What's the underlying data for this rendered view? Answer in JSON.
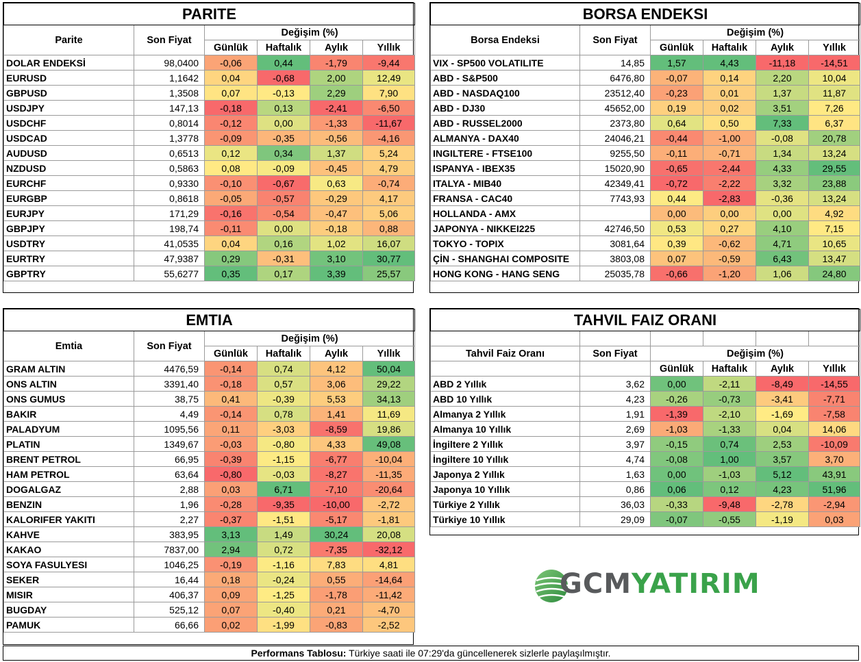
{
  "headers": {
    "son_fiyat": "Son Fiyat",
    "degisim": "Değişim (%)",
    "gunluk": "Günlük",
    "haftalik": "Haftalık",
    "aylik": "Aylık",
    "yillik": "Yıllık"
  },
  "parite": {
    "title": "PARITE",
    "col_name": "Parite",
    "rows": [
      {
        "name": "DOLAR ENDEKSİ",
        "price": "98,0400",
        "d": "-0,06",
        "w": "0,44",
        "m": "-1,79",
        "y": "-9,44"
      },
      {
        "name": "EURUSD",
        "price": "1,1642",
        "d": "0,04",
        "w": "-0,68",
        "m": "2,00",
        "y": "12,49"
      },
      {
        "name": "GBPUSD",
        "price": "1,3508",
        "d": "0,07",
        "w": "-0,13",
        "m": "2,29",
        "y": "7,90"
      },
      {
        "name": "USDJPY",
        "price": "147,13",
        "d": "-0,18",
        "w": "0,13",
        "m": "-2,41",
        "y": "-6,50"
      },
      {
        "name": "USDCHF",
        "price": "0,8014",
        "d": "-0,12",
        "w": "0,00",
        "m": "-1,33",
        "y": "-11,67"
      },
      {
        "name": "USDCAD",
        "price": "1,3778",
        "d": "-0,09",
        "w": "-0,35",
        "m": "-0,56",
        "y": "-4,16"
      },
      {
        "name": "AUDUSD",
        "price": "0,6513",
        "d": "0,12",
        "w": "0,34",
        "m": "1,37",
        "y": "5,24"
      },
      {
        "name": "NZDUSD",
        "price": "0,5863",
        "d": "0,08",
        "w": "-0,09",
        "m": "-0,45",
        "y": "4,79"
      },
      {
        "name": "EURCHF",
        "price": "0,9330",
        "d": "-0,10",
        "w": "-0,67",
        "m": "0,63",
        "y": "-0,74"
      },
      {
        "name": "EURGBP",
        "price": "0,8618",
        "d": "-0,05",
        "w": "-0,57",
        "m": "-0,29",
        "y": "4,17"
      },
      {
        "name": "EURJPY",
        "price": "171,29",
        "d": "-0,16",
        "w": "-0,54",
        "m": "-0,47",
        "y": "5,06"
      },
      {
        "name": "GBPJPY",
        "price": "198,74",
        "d": "-0,11",
        "w": "0,00",
        "m": "-0,18",
        "y": "0,88"
      },
      {
        "name": "USDTRY",
        "price": "41,0535",
        "d": "0,04",
        "w": "0,16",
        "m": "1,02",
        "y": "16,07"
      },
      {
        "name": "EURTRY",
        "price": "47,9387",
        "d": "0,29",
        "w": "-0,31",
        "m": "3,10",
        "y": "30,77"
      },
      {
        "name": "GBPTRY",
        "price": "55,6277",
        "d": "0,35",
        "w": "0,17",
        "m": "3,39",
        "y": "25,57"
      }
    ]
  },
  "borsa": {
    "title": "BORSA ENDEKSI",
    "col_name": "Borsa Endeksi",
    "rows": [
      {
        "name": "VIX  - SP500 VOLATILITE",
        "price": "14,85",
        "d": "1,57",
        "w": "4,43",
        "m": "-11,18",
        "y": "-14,51"
      },
      {
        "name": "ABD - S&P500",
        "price": "6476,80",
        "d": "-0,07",
        "w": "0,14",
        "m": "2,20",
        "y": "10,04"
      },
      {
        "name": "ABD - NASDAQ100",
        "price": "23512,40",
        "d": "-0,23",
        "w": "0,01",
        "m": "1,37",
        "y": "11,87"
      },
      {
        "name": "ABD - DJ30",
        "price": "45652,00",
        "d": "0,19",
        "w": "0,02",
        "m": "3,51",
        "y": "7,26"
      },
      {
        "name": "ABD - RUSSEL2000",
        "price": "2373,80",
        "d": "0,64",
        "w": "0,50",
        "m": "7,33",
        "y": "6,37"
      },
      {
        "name": "ALMANYA - DAX40",
        "price": "24046,21",
        "d": "-0,44",
        "w": "-1,00",
        "m": "-0,08",
        "y": "20,78"
      },
      {
        "name": "INGILTERE - FTSE100",
        "price": "9255,50",
        "d": "-0,11",
        "w": "-0,71",
        "m": "1,34",
        "y": "13,24"
      },
      {
        "name": "ISPANYA - IBEX35",
        "price": "15020,90",
        "d": "-0,65",
        "w": "-2,44",
        "m": "4,33",
        "y": "29,55"
      },
      {
        "name": "ITALYA - MIB40",
        "price": "42349,41",
        "d": "-0,72",
        "w": "-2,22",
        "m": "3,32",
        "y": "23,88"
      },
      {
        "name": "FRANSA - CAC40",
        "price": "7743,93",
        "d": "0,44",
        "w": "-2,83",
        "m": "-0,36",
        "y": "13,24"
      },
      {
        "name": "HOLLANDA - AMX",
        "price": "",
        "d": "0,00",
        "w": "0,00",
        "m": "0,00",
        "y": "4,92"
      },
      {
        "name": "JAPONYA - NIKKEI225",
        "price": "42746,50",
        "d": "0,53",
        "w": "0,27",
        "m": "4,10",
        "y": "7,15"
      },
      {
        "name": "TOKYO - TOPIX",
        "price": "3081,64",
        "d": "0,39",
        "w": "-0,62",
        "m": "4,71",
        "y": "10,65"
      },
      {
        "name": "ÇİN - SHANGHAI COMPOSITE",
        "price": "3803,08",
        "d": "0,07",
        "w": "-0,59",
        "m": "6,43",
        "y": "13,47"
      },
      {
        "name": "HONG KONG - HANG SENG",
        "price": "25035,78",
        "d": "-0,66",
        "w": "-1,20",
        "m": "1,06",
        "y": "24,80"
      }
    ]
  },
  "emtia": {
    "title": "EMTIA",
    "col_name": "Emtia",
    "rows": [
      {
        "name": "GRAM ALTIN",
        "price": "4476,59",
        "d": "-0,14",
        "w": "0,74",
        "m": "4,12",
        "y": "50,04"
      },
      {
        "name": "ONS ALTIN",
        "price": "3391,40",
        "d": "-0,18",
        "w": "0,57",
        "m": "3,06",
        "y": "29,22"
      },
      {
        "name": "ONS GUMUS",
        "price": "38,75",
        "d": "0,41",
        "w": "-0,39",
        "m": "5,53",
        "y": "34,13"
      },
      {
        "name": "BAKIR",
        "price": "4,49",
        "d": "-0,14",
        "w": "0,78",
        "m": "1,41",
        "y": "11,69"
      },
      {
        "name": "PALADYUM",
        "price": "1095,56",
        "d": "0,11",
        "w": "-3,03",
        "m": "-8,59",
        "y": "19,86"
      },
      {
        "name": "PLATIN",
        "price": "1349,67",
        "d": "-0,03",
        "w": "-0,80",
        "m": "4,33",
        "y": "49,08"
      },
      {
        "name": "BRENT PETROL",
        "price": "66,95",
        "d": "-0,39",
        "w": "-1,15",
        "m": "-6,77",
        "y": "-10,04"
      },
      {
        "name": "HAM PETROL",
        "price": "63,64",
        "d": "-0,80",
        "w": "-0,03",
        "m": "-8,27",
        "y": "-11,35"
      },
      {
        "name": "DOGALGAZ",
        "price": "2,88",
        "d": "0,03",
        "w": "6,71",
        "m": "-7,10",
        "y": "-20,64"
      },
      {
        "name": "BENZIN",
        "price": "1,96",
        "d": "-0,28",
        "w": "-9,35",
        "m": "-10,00",
        "y": "-2,72"
      },
      {
        "name": "KALORIFER YAKITI",
        "price": "2,27",
        "d": "-0,37",
        "w": "-1,51",
        "m": "-5,17",
        "y": "-1,81"
      },
      {
        "name": "KAHVE",
        "price": "383,95",
        "d": "3,13",
        "w": "1,49",
        "m": "30,24",
        "y": "20,08"
      },
      {
        "name": "KAKAO",
        "price": "7837,00",
        "d": "2,94",
        "w": "0,72",
        "m": "-7,35",
        "y": "-32,12"
      },
      {
        "name": "SOYA FASULYESI",
        "price": "1046,25",
        "d": "-0,19",
        "w": "-1,16",
        "m": "7,83",
        "y": "4,81"
      },
      {
        "name": "SEKER",
        "price": "16,44",
        "d": "0,18",
        "w": "-0,24",
        "m": "0,55",
        "y": "-14,64"
      },
      {
        "name": "MISIR",
        "price": "406,37",
        "d": "0,09",
        "w": "-1,25",
        "m": "-1,78",
        "y": "-11,42"
      },
      {
        "name": "BUGDAY",
        "price": "525,12",
        "d": "0,07",
        "w": "-0,40",
        "m": "0,21",
        "y": "-4,70"
      },
      {
        "name": "PAMUK",
        "price": "66,66",
        "d": "0,02",
        "w": "-1,99",
        "m": "-0,83",
        "y": "-2,52"
      }
    ]
  },
  "tahvil": {
    "title": "TAHVIL FAIZ ORANI",
    "col_name": "Tahvil Faiz Oranı",
    "rows": [
      {
        "name": "ABD 2 Yıllık",
        "price": "3,62",
        "d": "0,00",
        "w": "-2,11",
        "m": "-8,49",
        "y": "-14,55"
      },
      {
        "name": "ABD 10 Yıllık",
        "price": "4,23",
        "d": "-0,26",
        "w": "-0,73",
        "m": "-3,41",
        "y": "-7,71"
      },
      {
        "name": "Almanya 2 Yıllık",
        "price": "1,91",
        "d": "-1,39",
        "w": "-2,10",
        "m": "-1,69",
        "y": "-7,58"
      },
      {
        "name": "Almanya 10 Yıllık",
        "price": "2,69",
        "d": "-1,03",
        "w": "-1,33",
        "m": "0,04",
        "y": "14,06"
      },
      {
        "name": "İngiltere 2 Yıllık",
        "price": "3,97",
        "d": "-0,15",
        "w": "0,74",
        "m": "2,53",
        "y": "-10,09"
      },
      {
        "name": "İngiltere 10 Yıllık",
        "price": "4,74",
        "d": "-0,08",
        "w": "1,00",
        "m": "3,57",
        "y": "3,70"
      },
      {
        "name": "Japonya 2 Yıllık",
        "price": "1,63",
        "d": "0,00",
        "w": "-1,03",
        "m": "5,12",
        "y": "43,91"
      },
      {
        "name": "Japonya 10 Yıllık",
        "price": "0,86",
        "d": "0,06",
        "w": "0,12",
        "m": "4,23",
        "y": "51,96"
      },
      {
        "name": "Türkiye 2 Yıllık",
        "price": "36,03",
        "d": "-0,33",
        "w": "-9,48",
        "m": "-2,78",
        "y": "-2,94"
      },
      {
        "name": "Türkiye 10 Yıllık",
        "price": "29,09",
        "d": "-0,07",
        "w": "-0,55",
        "m": "-1,19",
        "y": "0,03"
      }
    ]
  },
  "logo": {
    "part1": "GCM",
    "part2": "YATIRIM"
  },
  "footer": {
    "bold": "Performans Tablosu:",
    "text": " Türkiye saati ile 07:29'da güncellenerek sizlerle paylaşılmıştır."
  },
  "colors": {
    "red": "#f8696b",
    "yellow": "#ffeb84",
    "green": "#63be7b"
  }
}
